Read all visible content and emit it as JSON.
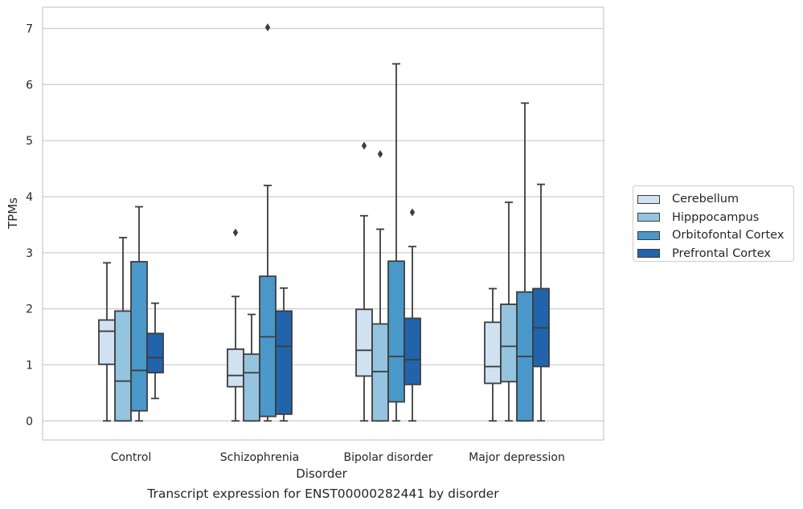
{
  "chart_data": {
    "type": "box",
    "xlabel": "Disorder",
    "ylabel": "TPMs",
    "caption": "Transcript expression for ENST00000282441 by disorder",
    "categories": [
      "Control",
      "Schizophrenia",
      "Bipolar disorder",
      "Major depression"
    ],
    "ylim": [
      -0.34,
      7.38
    ],
    "yticks": [
      0,
      1,
      2,
      3,
      4,
      5,
      6,
      7
    ],
    "grid": true,
    "legend_position": "right",
    "series": [
      {
        "name": "Cerebellum",
        "color": "#d0e1f2",
        "boxes": [
          {
            "whislo": 0,
            "q1": 1.01,
            "median": 1.6,
            "q3": 1.8,
            "whishi": 2.82,
            "fliers": []
          },
          {
            "whislo": 0,
            "q1": 0.61,
            "median": 0.81,
            "q3": 1.28,
            "whishi": 2.22,
            "fliers": [
              3.36
            ]
          },
          {
            "whislo": 0,
            "q1": 0.8,
            "median": 1.26,
            "q3": 1.99,
            "whishi": 3.66,
            "fliers": [
              4.91
            ]
          },
          {
            "whislo": 0,
            "q1": 0.67,
            "median": 0.97,
            "q3": 1.76,
            "whishi": 2.36,
            "fliers": []
          }
        ]
      },
      {
        "name": "Hipppocampus",
        "color": "#94c4df",
        "boxes": [
          {
            "whislo": 0,
            "q1": 0,
            "median": 0.71,
            "q3": 1.96,
            "whishi": 3.27,
            "fliers": []
          },
          {
            "whislo": 0,
            "q1": 0,
            "median": 0.86,
            "q3": 1.19,
            "whishi": 1.9,
            "fliers": []
          },
          {
            "whislo": 0,
            "q1": 0,
            "median": 0.88,
            "q3": 1.73,
            "whishi": 3.42,
            "fliers": [
              4.76
            ]
          },
          {
            "whislo": 0,
            "q1": 0.7,
            "median": 1.33,
            "q3": 2.08,
            "whishi": 3.9,
            "fliers": []
          }
        ]
      },
      {
        "name": "Orbitofontal Cortex",
        "color": "#4a98c9",
        "boxes": [
          {
            "whislo": 0,
            "q1": 0.18,
            "median": 0.9,
            "q3": 2.84,
            "whishi": 3.82,
            "fliers": []
          },
          {
            "whislo": 0,
            "q1": 0.08,
            "median": 1.5,
            "q3": 2.58,
            "whishi": 4.2,
            "fliers": [
              7.02
            ]
          },
          {
            "whislo": 0,
            "q1": 0.34,
            "median": 1.15,
            "q3": 2.85,
            "whishi": 6.37,
            "fliers": []
          },
          {
            "whislo": 0,
            "q1": 0,
            "median": 1.15,
            "q3": 2.3,
            "whishi": 5.67,
            "fliers": []
          }
        ]
      },
      {
        "name": "Prefrontal Cortex",
        "color": "#2164ab",
        "boxes": [
          {
            "whislo": 0.4,
            "q1": 0.86,
            "median": 1.13,
            "q3": 1.56,
            "whishi": 2.1,
            "fliers": []
          },
          {
            "whislo": 0,
            "q1": 0.12,
            "median": 1.33,
            "q3": 1.96,
            "whishi": 2.37,
            "fliers": []
          },
          {
            "whislo": 0,
            "q1": 0.65,
            "median": 1.09,
            "q3": 1.83,
            "whishi": 3.11,
            "fliers": [
              3.72
            ]
          },
          {
            "whislo": 0,
            "q1": 0.97,
            "median": 1.66,
            "q3": 2.36,
            "whishi": 4.22,
            "fliers": []
          }
        ]
      }
    ]
  }
}
